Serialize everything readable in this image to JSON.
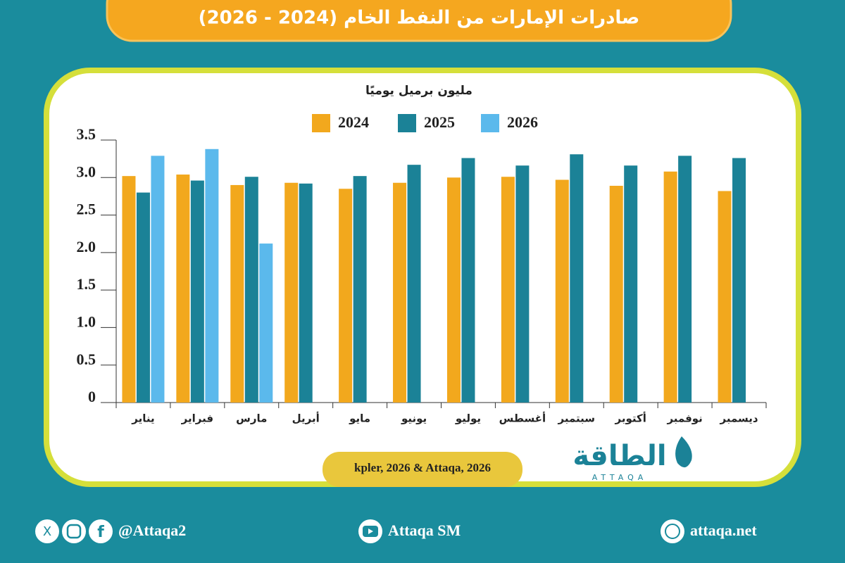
{
  "chart_data": {
    "type": "bar",
    "title": "صادرات الإمارات من النفط الخام (2024 - 2026)",
    "y_label": "مليون برميل يوميًا",
    "source": "kpler, 2026 & Attaqa, 2026",
    "categories": [
      "يناير",
      "فبراير",
      "مارس",
      "أبريل",
      "مايو",
      "يونيو",
      "يوليو",
      "أغسطس",
      "سبتمبر",
      "أكتوبر",
      "نوفمبر",
      "ديسمبر"
    ],
    "series": [
      {
        "name": "2024",
        "color": "#f2a81d",
        "values": [
          3.02,
          3.04,
          2.9,
          2.93,
          2.85,
          2.93,
          3.0,
          3.01,
          2.97,
          2.89,
          3.08,
          2.82
        ]
      },
      {
        "name": "2025",
        "color": "#1b8297",
        "values": [
          2.8,
          2.96,
          3.01,
          2.92,
          3.02,
          3.17,
          3.26,
          3.16,
          3.31,
          3.16,
          3.29,
          3.26
        ]
      },
      {
        "name": "2026",
        "color": "#5bb9ec",
        "values": [
          3.29,
          3.38,
          2.12,
          null,
          null,
          null,
          null,
          null,
          null,
          null,
          null,
          null
        ]
      }
    ],
    "ylim": [
      0,
      3.5
    ],
    "yticks": [
      0,
      0.5,
      {
        "value": 1,
        "label": "1.0"
      },
      1.5,
      {
        "value": 2,
        "label": "2.0"
      },
      2.5,
      {
        "value": 3,
        "label": "3.0"
      },
      3.5
    ]
  },
  "branding": {
    "logo": "الطاقة",
    "logo_latin": "ATTAQA",
    "social": "@Attaqa2",
    "youtube": "Attaqa SM",
    "website": "attaqa.net"
  }
}
